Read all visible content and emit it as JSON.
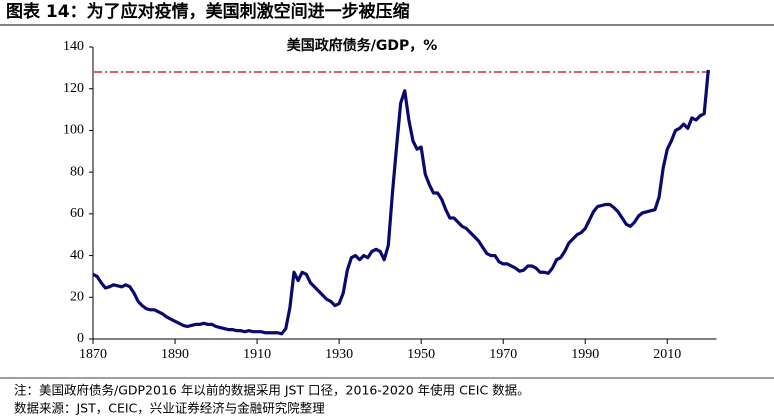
{
  "chart_data": {
    "type": "line",
    "title": "图表 14：为了应对疫情，美国刺激空间进一步被压缩",
    "notes": [
      "注：美国政府债务/GDP2016 年以前的数据采用 JST 口径，2016-2020 年使用 CEIC 数据。",
      "数据来源：JST，CEIC，兴业证券经济与金融研究院整理"
    ],
    "x": [
      1870,
      1871,
      1872,
      1873,
      1874,
      1875,
      1876,
      1877,
      1878,
      1879,
      1880,
      1881,
      1882,
      1883,
      1884,
      1885,
      1886,
      1887,
      1888,
      1889,
      1890,
      1891,
      1892,
      1893,
      1894,
      1895,
      1896,
      1897,
      1898,
      1899,
      1900,
      1901,
      1902,
      1903,
      1904,
      1905,
      1906,
      1907,
      1908,
      1909,
      1910,
      1911,
      1912,
      1913,
      1914,
      1915,
      1916,
      1917,
      1918,
      1919,
      1920,
      1921,
      1922,
      1923,
      1924,
      1925,
      1926,
      1927,
      1928,
      1929,
      1930,
      1931,
      1932,
      1933,
      1934,
      1935,
      1936,
      1937,
      1938,
      1939,
      1940,
      1941,
      1942,
      1943,
      1944,
      1945,
      1946,
      1947,
      1948,
      1949,
      1950,
      1951,
      1952,
      1953,
      1954,
      1955,
      1956,
      1957,
      1958,
      1959,
      1960,
      1961,
      1962,
      1963,
      1964,
      1965,
      1966,
      1967,
      1968,
      1969,
      1970,
      1971,
      1972,
      1973,
      1974,
      1975,
      1976,
      1977,
      1978,
      1979,
      1980,
      1981,
      1982,
      1983,
      1984,
      1985,
      1986,
      1987,
      1988,
      1989,
      1990,
      1991,
      1992,
      1993,
      1994,
      1995,
      1996,
      1997,
      1998,
      1999,
      2000,
      2001,
      2002,
      2003,
      2004,
      2005,
      2006,
      2007,
      2008,
      2009,
      2010,
      2011,
      2012,
      2013,
      2014,
      2015,
      2016,
      2017,
      2018,
      2019,
      2020
    ],
    "series": [
      {
        "name": "美国政府债务/GDP，%",
        "color": "#0a0a6e",
        "values": [
          31,
          30,
          27,
          24.5,
          25,
          26,
          25.5,
          25,
          26,
          25,
          22,
          18,
          16,
          14.5,
          14,
          14,
          13,
          12,
          10.5,
          9.5,
          8.5,
          7.5,
          6.5,
          6,
          6.5,
          7,
          7,
          7.5,
          7,
          7,
          6,
          5.5,
          5,
          4.5,
          4.5,
          4,
          4,
          3.5,
          4,
          3.5,
          3.5,
          3.5,
          3,
          3,
          3,
          3,
          2.5,
          5,
          15,
          32,
          28,
          32,
          31,
          27,
          25,
          23,
          21,
          19,
          18,
          16,
          17,
          22,
          33,
          39,
          40,
          38,
          40,
          39,
          42,
          43,
          42,
          38,
          45,
          70,
          92,
          113,
          119,
          105,
          95,
          91,
          92,
          79,
          74,
          70,
          70,
          67,
          62,
          58,
          58,
          56,
          54,
          53,
          51,
          49,
          47,
          44,
          41,
          40,
          40,
          37,
          36,
          36,
          35,
          34,
          32.5,
          33,
          35,
          35,
          34,
          32,
          32,
          31.5,
          34,
          38,
          39,
          42,
          46,
          48,
          50,
          51,
          53,
          57,
          61,
          63.5,
          64,
          64.5,
          64.5,
          63,
          61,
          58,
          55,
          54,
          56,
          59,
          60.5,
          61,
          61.5,
          62,
          68,
          82,
          91,
          95,
          100,
          101,
          103,
          101,
          106,
          105,
          107,
          108,
          129
        ]
      }
    ],
    "reference_line": {
      "value": 128,
      "color": "#c00000"
    },
    "xlim": [
      1870,
      2022
    ],
    "xticks": [
      1870,
      1890,
      1910,
      1930,
      1950,
      1970,
      1990,
      2010
    ],
    "ylim": [
      0,
      140
    ],
    "yticks": [
      0,
      20,
      40,
      60,
      80,
      100,
      120,
      140
    ]
  }
}
